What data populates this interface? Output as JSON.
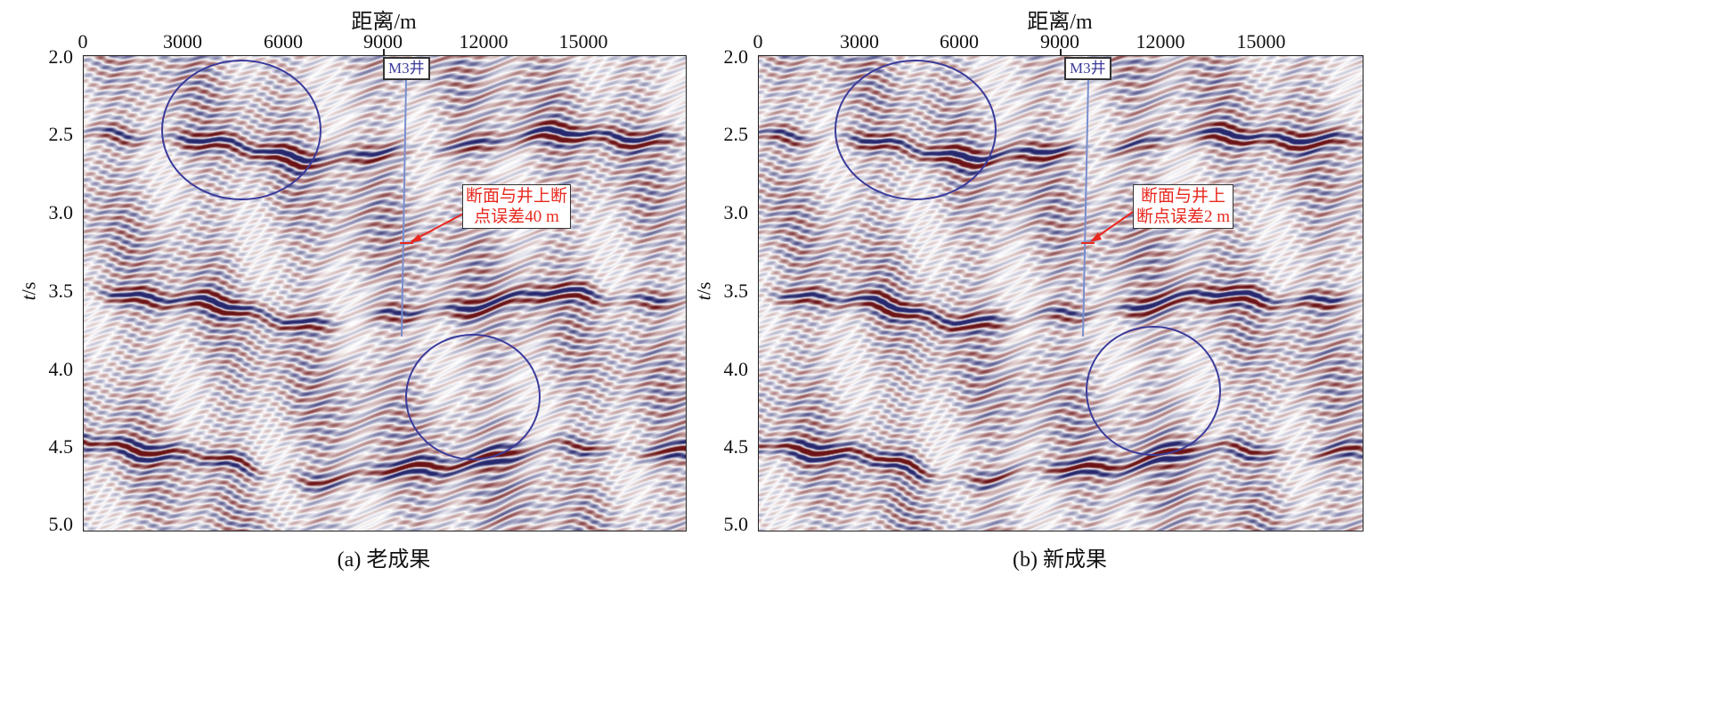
{
  "figure": {
    "x_axis_title": "距离/m",
    "y_axis_title_var": "t",
    "y_axis_title_unit": "/s",
    "x_ticks": [
      "0",
      "3000",
      "6000",
      "9000",
      "12000",
      "15000"
    ],
    "y_ticks": [
      "2.0",
      "2.5",
      "3.0",
      "3.5",
      "4.0",
      "4.5",
      "5.0"
    ],
    "colors": {
      "positive": "#6b1418",
      "negative": "#28286e",
      "zero": "#ffffff",
      "circle": "#3b3b9b",
      "annotation": "#e8281e",
      "well": "#7a8fcf"
    }
  },
  "panels": [
    {
      "caption": "(a) 老成果",
      "well_label": "M3井",
      "note_line1": "断面与井上断",
      "note_line2": "点误差40 m"
    },
    {
      "caption": "(b) 新成果",
      "well_label": "M3井",
      "note_line1": "断面与井上",
      "note_line2": "断点误差2 m"
    }
  ]
}
